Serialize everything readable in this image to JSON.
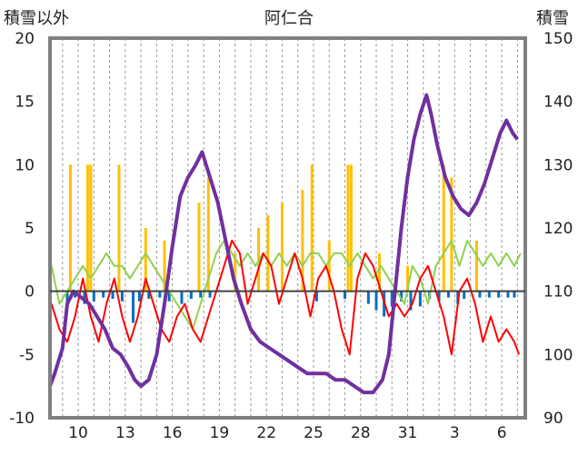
{
  "chart_data": {
    "type": "line",
    "title": "阿仁合",
    "left_axis_label": "積雪以外",
    "right_axis_label": "積雪",
    "left_ylim": [
      -10,
      20
    ],
    "left_ticks": [
      "20",
      "15",
      "10",
      "5",
      "0",
      "-5",
      "-10"
    ],
    "right_ylim": [
      90,
      150
    ],
    "right_ticks": [
      "150",
      "140",
      "130",
      "120",
      "110",
      "100",
      "90"
    ],
    "x_ticks": [
      {
        "day": 10,
        "label": "10"
      },
      {
        "day": 13,
        "label": "13"
      },
      {
        "day": 16,
        "label": "16"
      },
      {
        "day": 19,
        "label": "19"
      },
      {
        "day": 22,
        "label": "22"
      },
      {
        "day": 25,
        "label": "25"
      },
      {
        "day": 28,
        "label": "28"
      },
      {
        "day": 31,
        "label": "31"
      },
      {
        "day": 34,
        "label": "3"
      },
      {
        "day": 37,
        "label": "6"
      }
    ],
    "x_range": [
      8.2,
      38.5
    ],
    "grid": "vertical dashed lines at each day",
    "colors": {
      "snow_depth": "#7030a0",
      "temp_red": "#ff0000",
      "temp_green": "#92d050",
      "precip_orange": "#ffc000",
      "bar_blue": "#0070c0",
      "frame": "#808080"
    },
    "snow_depth": {
      "name": "積雪",
      "points": [
        [
          8.2,
          95
        ],
        [
          8.5,
          97
        ],
        [
          9.0,
          101
        ],
        [
          9.3,
          108
        ],
        [
          9.7,
          110
        ],
        [
          10.2,
          109
        ],
        [
          10.7,
          108
        ],
        [
          11.2,
          106
        ],
        [
          11.7,
          104
        ],
        [
          12.2,
          101
        ],
        [
          12.7,
          100
        ],
        [
          13.2,
          98
        ],
        [
          13.6,
          96
        ],
        [
          14.0,
          95
        ],
        [
          14.5,
          96
        ],
        [
          15.0,
          100
        ],
        [
          15.5,
          108
        ],
        [
          16.0,
          117
        ],
        [
          16.5,
          125
        ],
        [
          17.0,
          128
        ],
        [
          17.5,
          130
        ],
        [
          17.9,
          132
        ],
        [
          18.4,
          128
        ],
        [
          18.9,
          124
        ],
        [
          19.4,
          118
        ],
        [
          19.9,
          112
        ],
        [
          20.4,
          108
        ],
        [
          21.0,
          104
        ],
        [
          21.6,
          102
        ],
        [
          22.2,
          101
        ],
        [
          22.8,
          100
        ],
        [
          23.4,
          99
        ],
        [
          24.0,
          98
        ],
        [
          24.6,
          97
        ],
        [
          25.2,
          97
        ],
        [
          25.8,
          97
        ],
        [
          26.4,
          96
        ],
        [
          27.0,
          96
        ],
        [
          27.6,
          95
        ],
        [
          28.2,
          94
        ],
        [
          28.8,
          94
        ],
        [
          29.4,
          96
        ],
        [
          29.8,
          100
        ],
        [
          30.2,
          110
        ],
        [
          30.6,
          120
        ],
        [
          31.0,
          128
        ],
        [
          31.4,
          134
        ],
        [
          31.8,
          138
        ],
        [
          32.2,
          141
        ],
        [
          32.5,
          138
        ],
        [
          32.9,
          133
        ],
        [
          33.4,
          128
        ],
        [
          33.9,
          125
        ],
        [
          34.4,
          123
        ],
        [
          34.9,
          122
        ],
        [
          35.4,
          124
        ],
        [
          35.9,
          127
        ],
        [
          36.4,
          131
        ],
        [
          36.9,
          135
        ],
        [
          37.3,
          137
        ],
        [
          37.7,
          135
        ],
        [
          38.0,
          134
        ]
      ]
    },
    "temp_red": {
      "points": [
        [
          8.3,
          -1
        ],
        [
          8.8,
          -3
        ],
        [
          9.3,
          -4
        ],
        [
          9.8,
          -2
        ],
        [
          10.3,
          1
        ],
        [
          10.8,
          -2
        ],
        [
          11.3,
          -4
        ],
        [
          11.8,
          -1
        ],
        [
          12.3,
          1
        ],
        [
          12.8,
          -2
        ],
        [
          13.3,
          -4
        ],
        [
          13.8,
          -2
        ],
        [
          14.3,
          1
        ],
        [
          14.8,
          -1
        ],
        [
          15.3,
          -3
        ],
        [
          15.8,
          -4
        ],
        [
          16.3,
          -2
        ],
        [
          16.8,
          -1
        ],
        [
          17.3,
          -3
        ],
        [
          17.8,
          -4
        ],
        [
          18.3,
          -2
        ],
        [
          18.8,
          0
        ],
        [
          19.3,
          2
        ],
        [
          19.8,
          4
        ],
        [
          20.3,
          3
        ],
        [
          20.8,
          -1
        ],
        [
          21.3,
          1
        ],
        [
          21.8,
          3
        ],
        [
          22.3,
          2
        ],
        [
          22.8,
          -1
        ],
        [
          23.3,
          1
        ],
        [
          23.8,
          3
        ],
        [
          24.3,
          1
        ],
        [
          24.8,
          -2
        ],
        [
          25.3,
          1
        ],
        [
          25.8,
          2
        ],
        [
          26.3,
          0
        ],
        [
          26.8,
          -3
        ],
        [
          27.3,
          -5
        ],
        [
          27.8,
          1
        ],
        [
          28.3,
          3
        ],
        [
          28.8,
          2
        ],
        [
          29.3,
          0
        ],
        [
          29.8,
          -2
        ],
        [
          30.3,
          -1
        ],
        [
          30.8,
          -2
        ],
        [
          31.3,
          -1
        ],
        [
          31.8,
          1
        ],
        [
          32.3,
          2
        ],
        [
          32.8,
          0
        ],
        [
          33.3,
          -2
        ],
        [
          33.8,
          -5
        ],
        [
          34.3,
          0
        ],
        [
          34.8,
          1
        ],
        [
          35.3,
          -1
        ],
        [
          35.8,
          -4
        ],
        [
          36.3,
          -2
        ],
        [
          36.8,
          -4
        ],
        [
          37.3,
          -3
        ],
        [
          37.8,
          -4
        ],
        [
          38.1,
          -5
        ]
      ]
    },
    "temp_green": {
      "points": [
        [
          8.3,
          2
        ],
        [
          8.8,
          -1
        ],
        [
          9.3,
          0
        ],
        [
          9.8,
          1
        ],
        [
          10.3,
          2
        ],
        [
          10.8,
          1
        ],
        [
          11.3,
          2
        ],
        [
          11.8,
          3
        ],
        [
          12.3,
          2
        ],
        [
          12.8,
          2
        ],
        [
          13.3,
          1
        ],
        [
          13.8,
          2
        ],
        [
          14.3,
          3
        ],
        [
          14.8,
          2
        ],
        [
          15.3,
          1
        ],
        [
          15.8,
          0
        ],
        [
          16.3,
          -1
        ],
        [
          16.8,
          -2
        ],
        [
          17.3,
          -3
        ],
        [
          17.8,
          -1
        ],
        [
          18.3,
          1
        ],
        [
          18.8,
          3
        ],
        [
          19.3,
          4
        ],
        [
          19.8,
          3
        ],
        [
          20.3,
          2
        ],
        [
          20.8,
          3
        ],
        [
          21.3,
          2
        ],
        [
          21.8,
          3
        ],
        [
          22.3,
          2
        ],
        [
          22.8,
          3
        ],
        [
          23.3,
          2
        ],
        [
          23.8,
          3
        ],
        [
          24.3,
          2
        ],
        [
          24.8,
          3
        ],
        [
          25.3,
          3
        ],
        [
          25.8,
          2
        ],
        [
          26.3,
          3
        ],
        [
          26.8,
          3
        ],
        [
          27.3,
          2
        ],
        [
          27.8,
          3
        ],
        [
          28.3,
          2
        ],
        [
          28.8,
          1
        ],
        [
          29.3,
          2
        ],
        [
          29.8,
          1
        ],
        [
          30.3,
          0
        ],
        [
          30.8,
          -1
        ],
        [
          31.3,
          2
        ],
        [
          31.8,
          1
        ],
        [
          32.3,
          -1
        ],
        [
          32.8,
          2
        ],
        [
          33.3,
          3
        ],
        [
          33.8,
          4
        ],
        [
          34.3,
          2
        ],
        [
          34.8,
          4
        ],
        [
          35.3,
          3
        ],
        [
          35.8,
          2
        ],
        [
          36.3,
          3
        ],
        [
          36.8,
          2
        ],
        [
          37.3,
          3
        ],
        [
          37.8,
          2
        ],
        [
          38.2,
          3
        ]
      ]
    },
    "precip_orange": {
      "days": [
        9.5,
        10.6,
        10.8,
        12.6,
        14.3,
        15.5,
        17.7,
        18.3,
        20.0,
        21.5,
        22.1,
        23.0,
        24.3,
        24.9,
        26.0,
        27.2,
        27.4,
        29.2,
        31.0,
        33.3,
        33.8,
        35.4
      ],
      "values": [
        10,
        10,
        10,
        10,
        5,
        4,
        7,
        9,
        3,
        5,
        6,
        7,
        8,
        10,
        4,
        10,
        10,
        3,
        2,
        10,
        9,
        4
      ]
    },
    "bar_blue": {
      "days": [
        9.3,
        9.8,
        10.4,
        11.0,
        11.6,
        12.2,
        12.8,
        13.5,
        13.9,
        14.5,
        15.2,
        15.8,
        16.6,
        17.2,
        17.8,
        18.4,
        25.2,
        27.0,
        28.5,
        29.0,
        29.5,
        30.0,
        30.6,
        31.2,
        31.8,
        32.4,
        33.0,
        33.6,
        34.2,
        34.6,
        35.6,
        36.2,
        36.8,
        37.4,
        37.8
      ],
      "values": [
        -1,
        -0.5,
        -1,
        -0.8,
        -0.5,
        -0.6,
        -0.8,
        -2.5,
        -0.8,
        -0.6,
        -0.5,
        -0.8,
        -1,
        -0.6,
        -0.5,
        -0.5,
        -0.8,
        -0.6,
        -1,
        -1.5,
        -2,
        -1.2,
        -0.8,
        -1.5,
        -1.2,
        -0.6,
        -0.8,
        -0.5,
        -1,
        -0.6,
        -0.5,
        -0.5,
        -0.5,
        -0.5,
        -0.5
      ]
    }
  }
}
